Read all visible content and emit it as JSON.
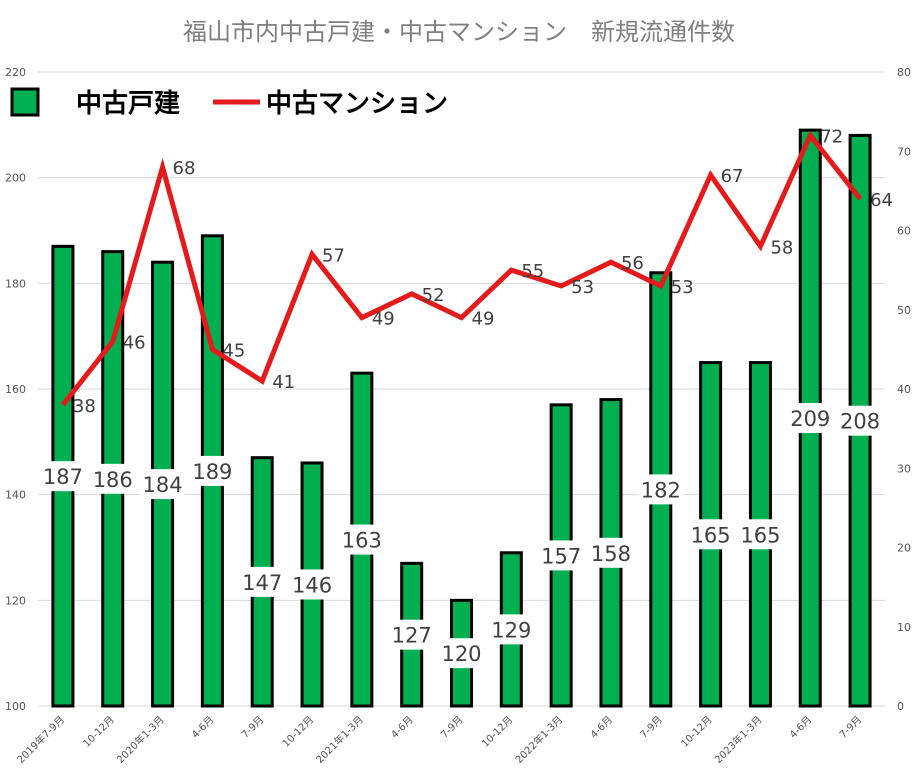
{
  "chart_data": {
    "type": "bar",
    "title": "福山市内中古戸建・中古マンション　新規流通件数",
    "categories": [
      "2019年7-9月",
      "10-12月",
      "2020年1-3月",
      "4-6月",
      "7-9月",
      "10-12月",
      "2021年1-3月",
      "4-6月",
      "7-9月",
      "10-12月",
      "2022年1-3月",
      "4-6月",
      "7-9月",
      "10-12月",
      "2023年1-3月",
      "4-6月",
      "7-9月"
    ],
    "series": [
      {
        "name": "中古戸建",
        "type": "bar",
        "axis": "left",
        "color": "#00b050",
        "values": [
          187,
          186,
          184,
          189,
          147,
          146,
          163,
          127,
          120,
          129,
          157,
          158,
          182,
          165,
          165,
          209,
          208
        ]
      },
      {
        "name": "中古マンション",
        "type": "line",
        "axis": "right",
        "color": "#e51a1a",
        "values": [
          38,
          46,
          68,
          45,
          41,
          57,
          49,
          52,
          49,
          55,
          53,
          56,
          53,
          67,
          58,
          72,
          64
        ]
      }
    ],
    "y_left": {
      "lim": [
        100,
        220
      ],
      "ticks": [
        100,
        120,
        140,
        160,
        180,
        200,
        220
      ]
    },
    "y_right": {
      "lim": [
        0,
        80
      ],
      "ticks": [
        0,
        10,
        20,
        30,
        40,
        50,
        60,
        70,
        80
      ]
    },
    "grid": true,
    "legend": "top-left"
  }
}
